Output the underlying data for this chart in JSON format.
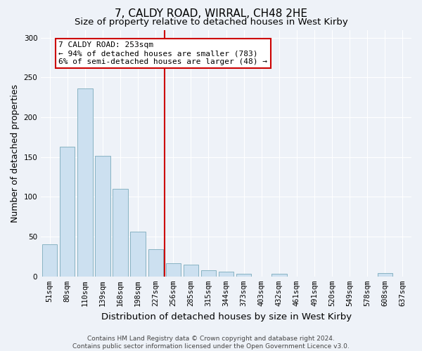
{
  "title": "7, CALDY ROAD, WIRRAL, CH48 2HE",
  "subtitle": "Size of property relative to detached houses in West Kirby",
  "xlabel": "Distribution of detached houses by size in West Kirby",
  "ylabel": "Number of detached properties",
  "footer_line1": "Contains HM Land Registry data © Crown copyright and database right 2024.",
  "footer_line2": "Contains public sector information licensed under the Open Government Licence v3.0.",
  "bar_labels": [
    "51sqm",
    "80sqm",
    "110sqm",
    "139sqm",
    "168sqm",
    "198sqm",
    "227sqm",
    "256sqm",
    "285sqm",
    "315sqm",
    "344sqm",
    "373sqm",
    "403sqm",
    "432sqm",
    "461sqm",
    "491sqm",
    "520sqm",
    "549sqm",
    "578sqm",
    "608sqm",
    "637sqm"
  ],
  "bar_values": [
    40,
    163,
    236,
    152,
    110,
    56,
    34,
    17,
    15,
    8,
    6,
    3,
    0,
    3,
    0,
    0,
    0,
    0,
    0,
    4,
    0
  ],
  "bar_color": "#cce0f0",
  "bar_edge_color": "#7aaabb",
  "vline_color": "#cc0000",
  "vline_idx": 7,
  "annotation_line1": "7 CALDY ROAD: 253sqm",
  "annotation_line2": "← 94% of detached houses are smaller (783)",
  "annotation_line3": "6% of semi-detached houses are larger (48) →",
  "annotation_box_color": "#ffffff",
  "annotation_box_edge_color": "#cc0000",
  "ylim": [
    0,
    310
  ],
  "yticks": [
    0,
    50,
    100,
    150,
    200,
    250,
    300
  ],
  "bg_color": "#eef2f8",
  "grid_color": "#ffffff",
  "title_fontsize": 11,
  "subtitle_fontsize": 9.5,
  "axis_label_fontsize": 9,
  "tick_fontsize": 7.5,
  "footer_fontsize": 6.5
}
